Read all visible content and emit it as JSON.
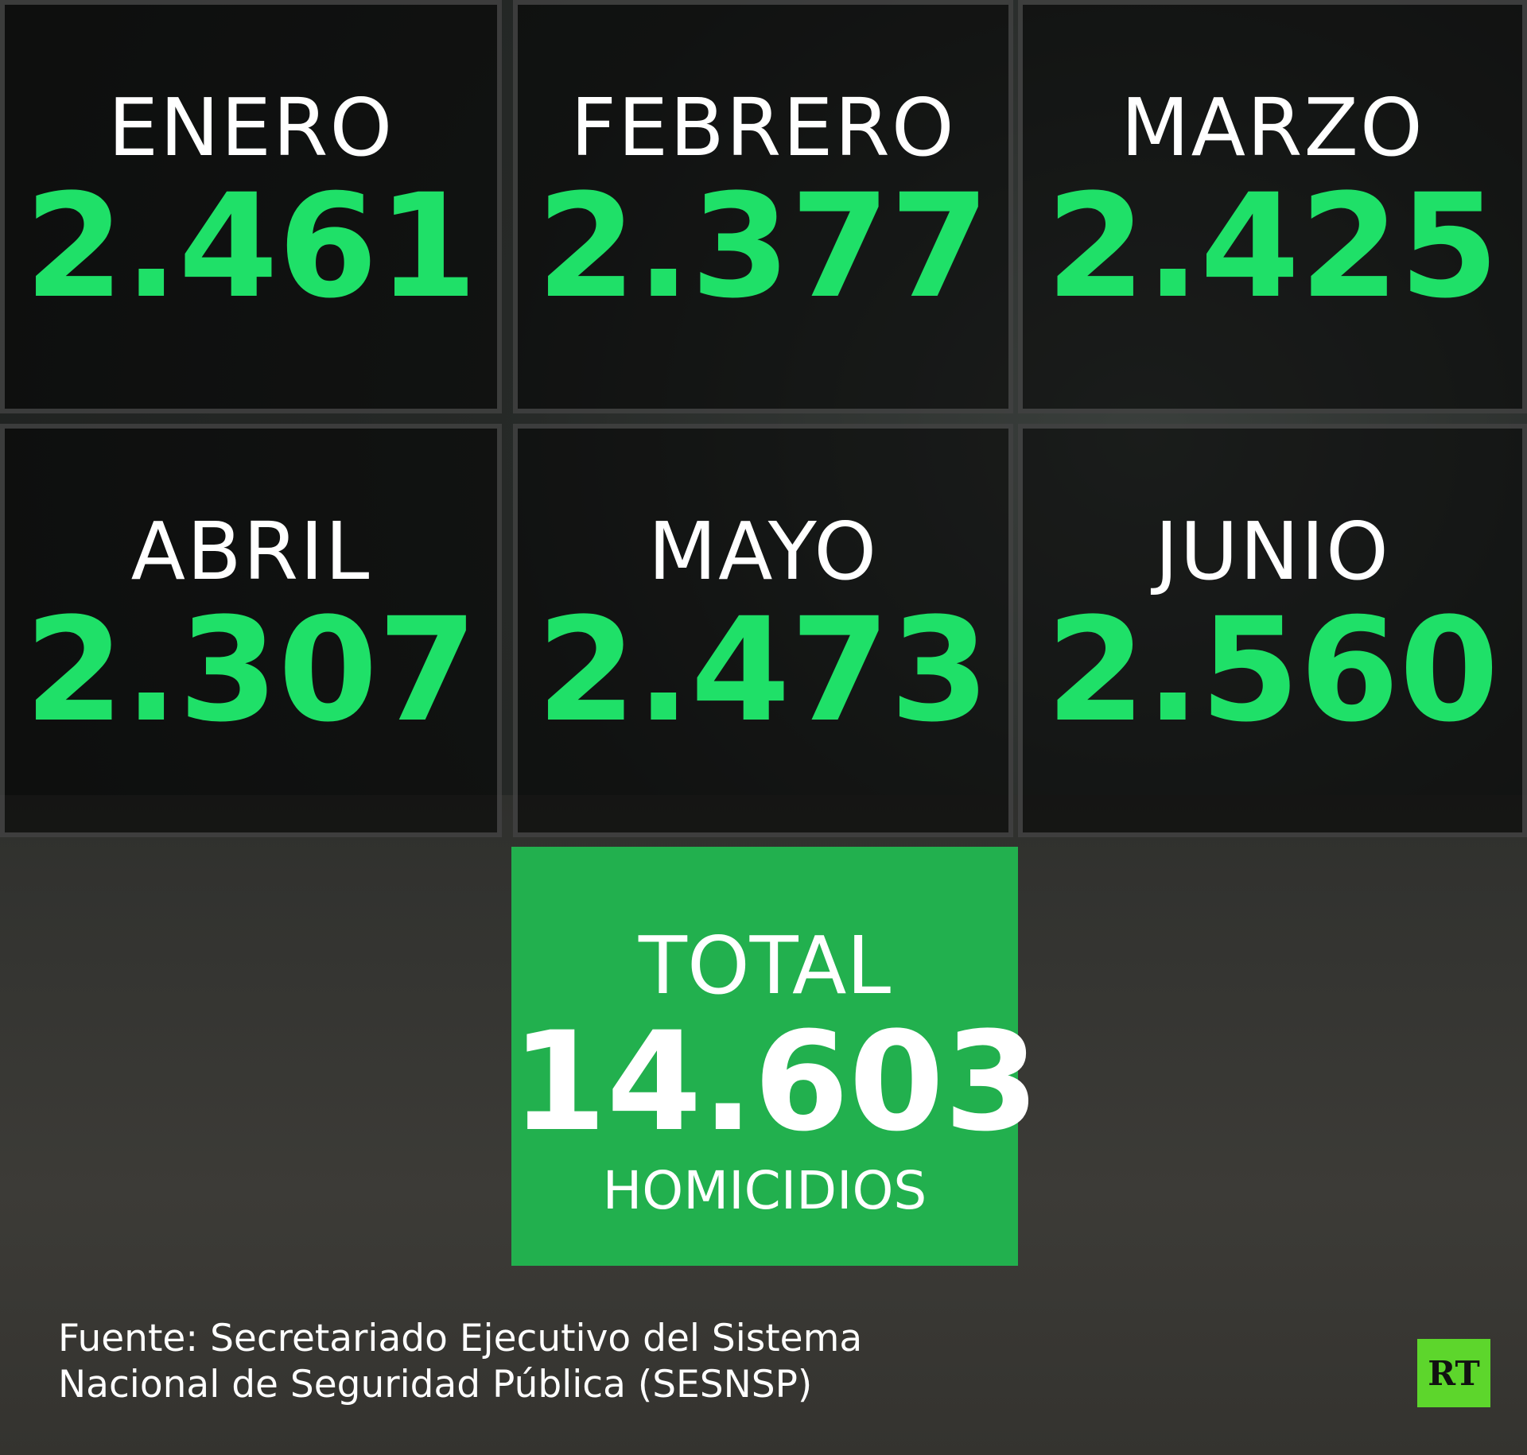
{
  "cells": [
    {
      "label": "ENERO",
      "value": "2.461"
    },
    {
      "label": "FEBRERO",
      "value": "2.377"
    },
    {
      "label": "MARZO",
      "value": "2.425"
    },
    {
      "label": "ABRIL",
      "value": "2.307"
    },
    {
      "label": "MAYO",
      "value": "2.473"
    },
    {
      "label": "JUNIO",
      "value": "2.560"
    }
  ],
  "total": {
    "label": "TOTAL",
    "value": "14.603",
    "unit": "HOMICIDIOS"
  },
  "source": [
    "Fuente: Secretariado Ejecutivo del Sistema",
    "Nacional de Seguridad Pública (SESNSP)"
  ],
  "logo": "RT"
}
